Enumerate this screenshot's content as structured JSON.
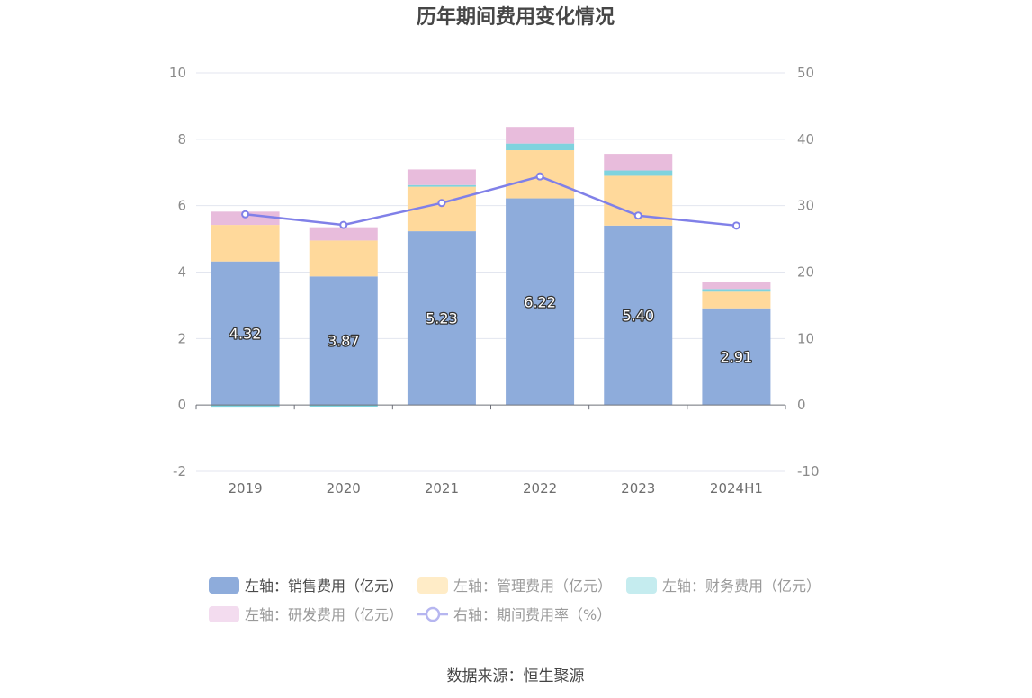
{
  "chart_data": {
    "type": "bar",
    "title": "历年期间费用变化情况",
    "categories": [
      "2019",
      "2020",
      "2021",
      "2022",
      "2023",
      "2024H1"
    ],
    "left_axis": {
      "ylim": [
        -2,
        10
      ],
      "ticks": [
        "-2",
        "0",
        "2",
        "4",
        "6",
        "8",
        "10"
      ]
    },
    "right_axis": {
      "ylim": [
        -10,
        50
      ],
      "ticks": [
        "-10",
        "0",
        "10",
        "20",
        "30",
        "40",
        "50"
      ]
    },
    "series": [
      {
        "name": "左轴：销售费用（亿元）",
        "type": "bar",
        "stack": true,
        "axis": "left",
        "color": "#8eacdb",
        "values": [
          4.32,
          3.87,
          5.23,
          6.22,
          5.4,
          2.91
        ],
        "labels": [
          "4.32",
          "3.87",
          "5.23",
          "6.22",
          "5.40",
          "2.91"
        ]
      },
      {
        "name": "左轴：管理费用（亿元）",
        "type": "bar",
        "stack": true,
        "axis": "left",
        "color": "#ffd99b",
        "values": [
          1.1,
          1.08,
          1.34,
          1.45,
          1.5,
          0.5
        ]
      },
      {
        "name": "左轴：财务费用（亿元）",
        "type": "bar",
        "stack": true,
        "axis": "left",
        "color": "#7fd3de",
        "values": [
          -0.08,
          -0.05,
          0.05,
          0.2,
          0.16,
          0.08
        ]
      },
      {
        "name": "左轴：研发费用（亿元）",
        "type": "bar",
        "stack": true,
        "axis": "left",
        "color": "#e8bcdc",
        "values": [
          0.4,
          0.4,
          0.47,
          0.5,
          0.5,
          0.21
        ]
      },
      {
        "name": "右轴：期间费用率（%）",
        "type": "line",
        "axis": "right",
        "color": "#8080e8",
        "values": [
          28.7,
          27.1,
          30.4,
          34.4,
          28.5,
          27.0
        ]
      }
    ],
    "legend_position": "bottom",
    "grid": true
  },
  "footer": {
    "source": "数据来源：恒生聚源"
  }
}
